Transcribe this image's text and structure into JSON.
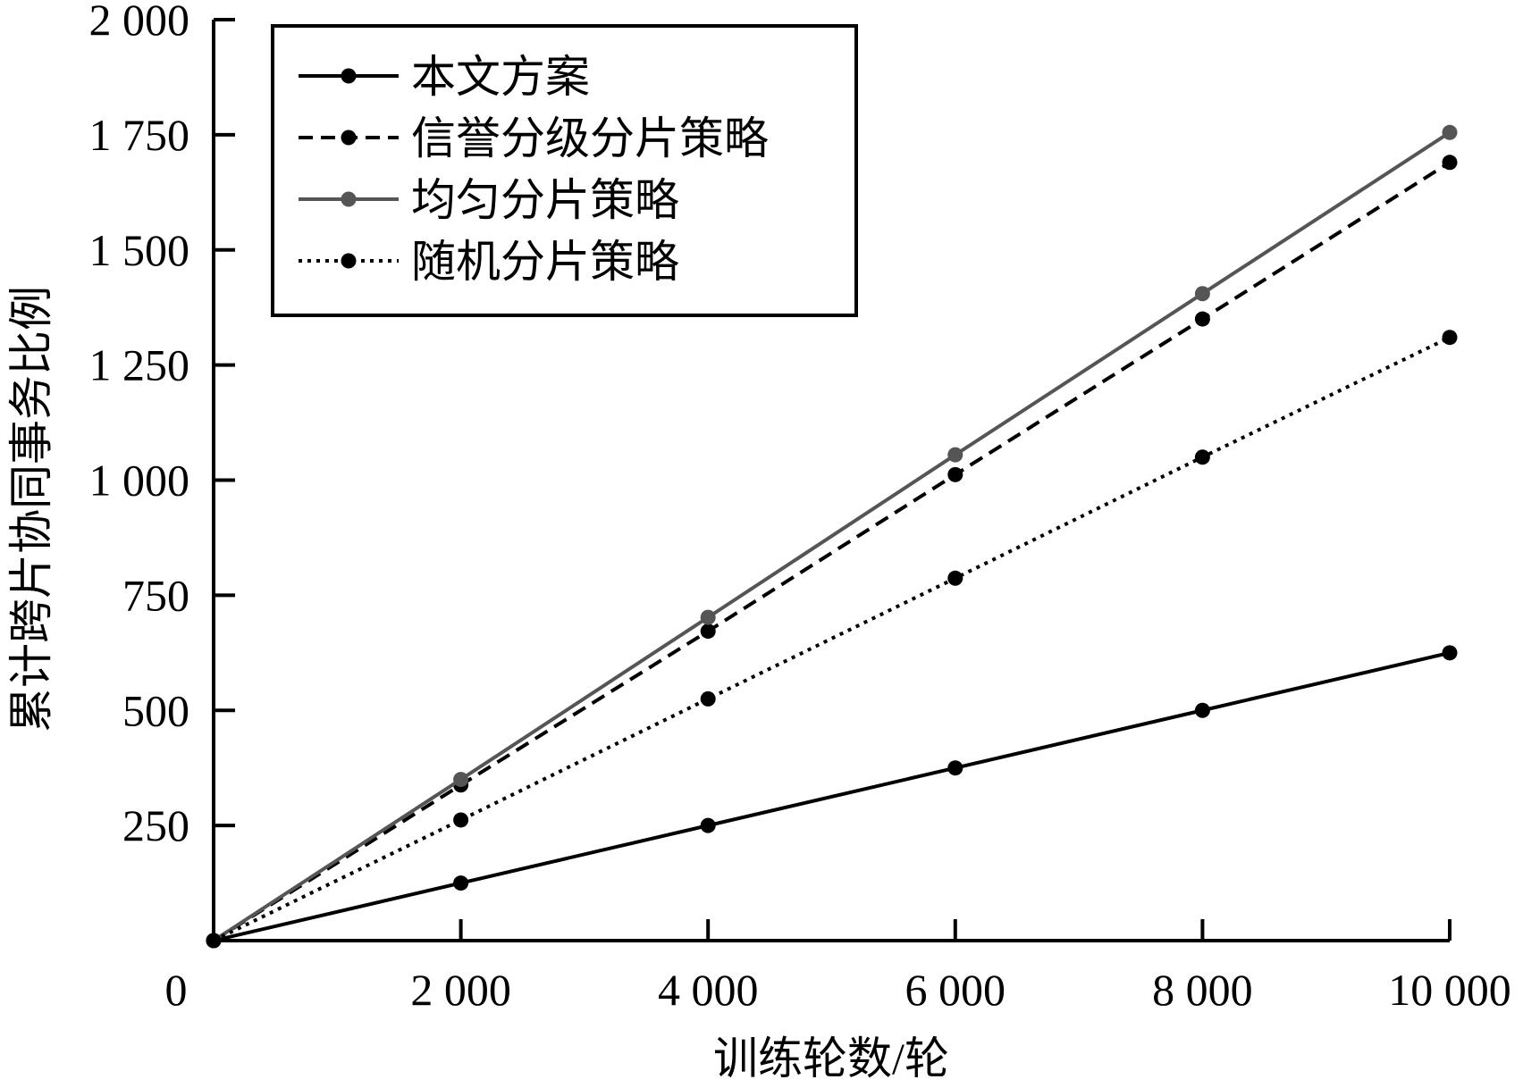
{
  "chart_data": {
    "type": "line",
    "xlabel": "训练轮数/轮",
    "ylabel": "累计跨片协同事务比例",
    "xlim": [
      0,
      10000
    ],
    "ylim": [
      0,
      2000
    ],
    "x_origin_label": "0",
    "x_ticks": [
      {
        "value": 2000,
        "label": "2 000"
      },
      {
        "value": 4000,
        "label": "4 000"
      },
      {
        "value": 6000,
        "label": "6 000"
      },
      {
        "value": 8000,
        "label": "8 000"
      },
      {
        "value": 10000,
        "label": "10 000"
      }
    ],
    "y_ticks": [
      {
        "value": 250,
        "label": "250"
      },
      {
        "value": 500,
        "label": "500"
      },
      {
        "value": 750,
        "label": "750"
      },
      {
        "value": 1000,
        "label": "1 000"
      },
      {
        "value": 1250,
        "label": "1 250"
      },
      {
        "value": 1500,
        "label": "1 500"
      },
      {
        "value": 1750,
        "label": "1 750"
      },
      {
        "value": 2000,
        "label": "2 000"
      }
    ],
    "grid": false,
    "legend_position": "top-left",
    "x": [
      0,
      2000,
      4000,
      6000,
      8000,
      10000
    ],
    "series": [
      {
        "name": "本文方案",
        "values": [
          0,
          125,
          250,
          375,
          500,
          625
        ],
        "color": "#000000",
        "dash": "solid",
        "id": "ours"
      },
      {
        "name": "信誉分级分片策略",
        "values": [
          0,
          338,
          672,
          1012,
          1350,
          1690
        ],
        "color": "#000000",
        "dash": "dashed",
        "id": "reputation"
      },
      {
        "name": "均匀分片策略",
        "values": [
          0,
          350,
          702,
          1055,
          1405,
          1755
        ],
        "color": "#555555",
        "dash": "solid",
        "id": "uniform"
      },
      {
        "name": "随机分片策略",
        "values": [
          0,
          262,
          525,
          787,
          1050,
          1310
        ],
        "color": "#000000",
        "dash": "dotted",
        "id": "random"
      }
    ]
  }
}
